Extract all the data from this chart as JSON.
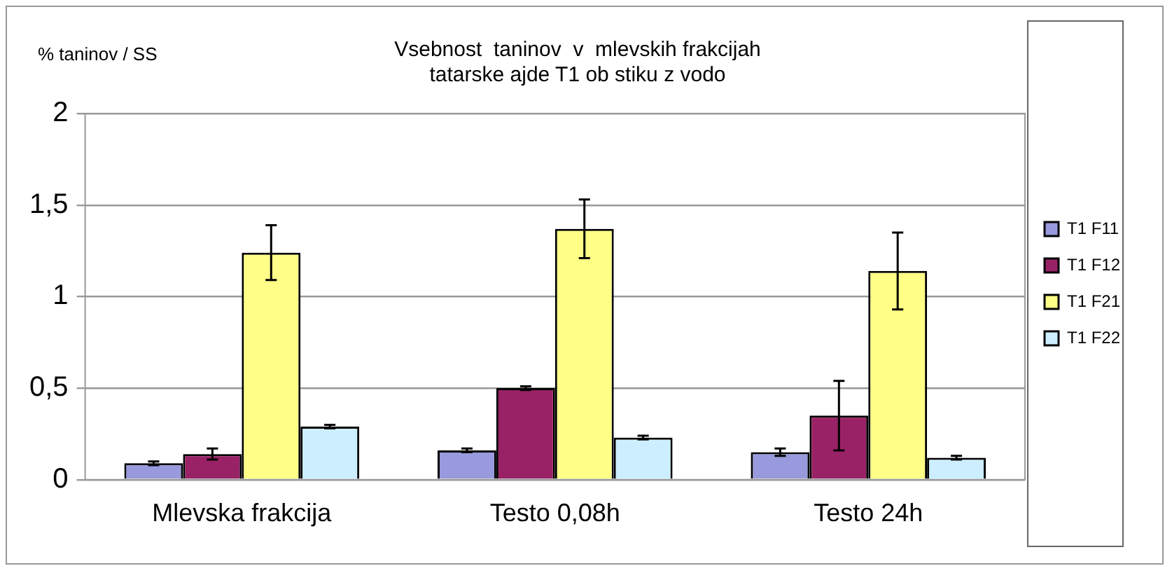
{
  "chart_data": {
    "type": "bar",
    "title": "Vsebnost  taninov  v  mlevskih frakcijah\ntatarske ajde T1 ob stiku z vodo",
    "ylabel": "% taninov / SS",
    "categories": [
      "Mlevska frakcija",
      "Testo 0,08h",
      "Testo 24h"
    ],
    "series": [
      {
        "name": "T1 F11",
        "color": "#9999dd",
        "values": [
          0.09,
          0.16,
          0.15
        ],
        "errors": [
          0.01,
          0.01,
          0.02
        ]
      },
      {
        "name": "T1 F12",
        "color": "#992266",
        "values": [
          0.14,
          0.5,
          0.35
        ],
        "errors": [
          0.03,
          0.01,
          0.19
        ]
      },
      {
        "name": "T1 F21",
        "color": "#ffff88",
        "values": [
          1.24,
          1.37,
          1.14
        ],
        "errors": [
          0.15,
          0.16,
          0.21
        ]
      },
      {
        "name": "T1 F22",
        "color": "#cceeff",
        "values": [
          0.29,
          0.23,
          0.12
        ],
        "errors": [
          0.01,
          0.01,
          0.01
        ]
      }
    ],
    "ylim": [
      0,
      2
    ],
    "yticks": [
      0,
      {
        "value": 0.5,
        "label": "0,5"
      },
      1,
      {
        "value": 1.5,
        "label": "1,5"
      },
      2
    ],
    "grid": "y",
    "legend": "right"
  }
}
